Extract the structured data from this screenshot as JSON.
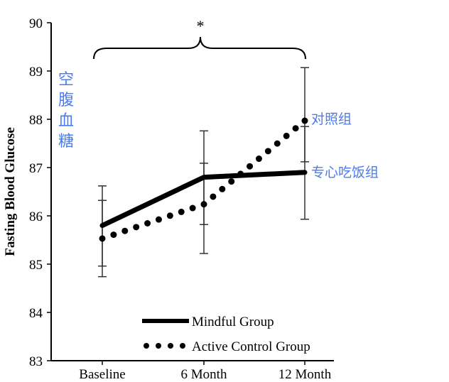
{
  "chart_data": {
    "type": "line",
    "ylabel": "Fasting Blood Glucose",
    "categories": [
      "Baseline",
      "6 Month",
      "12 Month"
    ],
    "ylim": [
      83,
      90
    ],
    "yticks": [
      "83",
      "84",
      "85",
      "86",
      "87",
      "88",
      "89",
      "90"
    ],
    "grid": false,
    "legend_position": "bottom-right",
    "series": [
      {
        "name": "Mindful Group",
        "style": "solid",
        "values": [
          85.8,
          86.8,
          86.9
        ],
        "error_low": [
          84.96,
          85.82,
          85.93
        ],
        "error_high": [
          86.62,
          87.76,
          87.85
        ]
      },
      {
        "name": "Active Control Group",
        "style": "dotted",
        "values": [
          85.53,
          86.24,
          87.97
        ],
        "error_low": [
          84.74,
          85.22,
          87.12
        ],
        "error_high": [
          86.32,
          87.09,
          89.07
        ]
      }
    ],
    "significance_marker": "*",
    "color": "#000000"
  },
  "annotations": {
    "ylabel_cn": "空腹血糖",
    "control_cn": "对照组",
    "mindful_cn": "专心吃饭组",
    "color": "#4a7cf0"
  }
}
